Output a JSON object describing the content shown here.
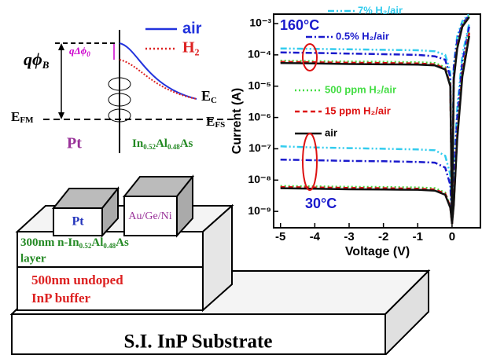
{
  "band_diagram": {
    "barrier": {
      "main": "qϕ",
      "sub": "B"
    },
    "lowering": {
      "main": "qΔϕ",
      "sub": "0"
    },
    "legend": [
      "air",
      "H₂"
    ],
    "ec": {
      "main": "E",
      "sub": "C"
    },
    "efm": {
      "main": "E",
      "sub": "FM"
    },
    "efs": {
      "main": "E",
      "sub": "FS"
    },
    "metal": "Pt",
    "semiconductor": [
      "In",
      "0.52",
      "Al",
      "0.48",
      "As"
    ]
  },
  "device": {
    "contact_1": "Pt",
    "contact_2": "Au/Ge/Ni",
    "layer_1": {
      "line1": [
        "300nm n-In",
        "0.52",
        "Al",
        "0.48",
        "As"
      ],
      "line2": "layer"
    },
    "layer_2": {
      "line1": "500nm undoped",
      "line2": "InP buffer"
    },
    "substrate": "S.I. InP Substrate"
  },
  "chart_data": {
    "type": "line",
    "yscale": "log",
    "xlabel": "Voltage (V)",
    "ylabel": "Current (A)",
    "annotations": [
      "160°C",
      "30°C"
    ],
    "x": [
      -5,
      -4,
      -3,
      -2,
      -1,
      -0.5,
      -0.2,
      -0.05,
      0,
      0.05,
      0.15,
      0.3,
      0.5
    ],
    "xlim": [
      -5.2,
      0.85
    ],
    "xticks": [
      -5,
      -4,
      -3,
      -2,
      -1,
      0
    ],
    "ylim": [
      3e-10,
      0.002
    ],
    "yticks": [
      {
        "value": 0.001,
        "label": "10⁻³"
      },
      {
        "value": 0.0001,
        "label": "10⁻⁴"
      },
      {
        "value": 1e-05,
        "label": "10⁻⁵"
      },
      {
        "value": 1e-06,
        "label": "10⁻⁶"
      },
      {
        "value": 1e-07,
        "label": "10⁻⁷"
      },
      {
        "value": 1e-08,
        "label": "10⁻⁸"
      },
      {
        "value": 1e-09,
        "label": "10⁻⁹"
      }
    ],
    "series": [
      {
        "name": "7% H₂/air",
        "color": "#33ccee",
        "dash": "8,3,2,3,2,3",
        "values": [
          0.00016,
          0.000155,
          0.00015,
          0.000145,
          0.00014,
          0.00013,
          0.0001,
          3e-05,
          5e-10,
          5e-05,
          0.0004,
          0.0012,
          0.002
        ],
        "values_30C": [
          1.2e-07,
          1.1e-07,
          1.05e-07,
          1e-07,
          9.5e-08,
          9e-08,
          6e-08,
          1.5e-08,
          4e-10,
          2e-08,
          2e-06,
          0.0001,
          0.001
        ]
      },
      {
        "name": "0.5% H₂/air",
        "color": "#1a1acc",
        "dash": "8,3,2,3",
        "values": [
          0.00012,
          0.000115,
          0.00011,
          0.000105,
          0.0001,
          9e-05,
          7e-05,
          2e-05,
          5e-10,
          4e-05,
          0.0003,
          0.001,
          0.0018
        ],
        "values_30C": [
          4.5e-08,
          4.3e-08,
          4.1e-08,
          4e-08,
          3.8e-08,
          3.6e-08,
          2.5e-08,
          7e-09,
          4e-10,
          1e-08,
          1e-06,
          6e-05,
          0.0008
        ]
      },
      {
        "name": "500 ppm H₂/air",
        "color": "#44dd44",
        "dash": "2,3",
        "values": [
          6.5e-05,
          6.3e-05,
          6.1e-05,
          6e-05,
          5.8e-05,
          5.5e-05,
          4e-05,
          1.2e-05,
          5e-10,
          2e-05,
          0.0002,
          0.0009,
          0.0017
        ],
        "values_30C": [
          6.5e-09,
          6.3e-09,
          6.1e-09,
          6e-09,
          5.8e-09,
          5.5e-09,
          4e-09,
          1.5e-09,
          4e-10,
          2e-09,
          3e-07,
          3e-05,
          0.0006
        ]
      },
      {
        "name": "15 ppm H₂/air",
        "color": "#dd1111",
        "dash": "6,4",
        "values": [
          6e-05,
          5.8e-05,
          5.6e-05,
          5.5e-05,
          5.3e-05,
          5e-05,
          3.7e-05,
          1.1e-05,
          5e-10,
          1.8e-05,
          0.00018,
          0.00085,
          0.0016
        ],
        "values_30C": [
          6e-09,
          5.8e-09,
          5.6e-09,
          5.5e-09,
          5.3e-09,
          5e-09,
          3.7e-09,
          1.4e-09,
          4e-10,
          1.8e-09,
          2.5e-07,
          2.5e-05,
          0.0005
        ]
      },
      {
        "name": "air",
        "color": "#111111",
        "dash": "",
        "values": [
          5.5e-05,
          5.3e-05,
          5.1e-05,
          5e-05,
          4.9e-05,
          4.6e-05,
          3.4e-05,
          1e-05,
          5e-10,
          1.6e-05,
          0.00016,
          0.0008,
          0.0016
        ],
        "values_30C": [
          5.5e-09,
          5.3e-09,
          5.1e-09,
          5e-09,
          4.9e-09,
          4.6e-09,
          3.4e-09,
          1.3e-09,
          4e-10,
          1.6e-09,
          2e-07,
          2e-05,
          0.0004
        ]
      }
    ]
  }
}
